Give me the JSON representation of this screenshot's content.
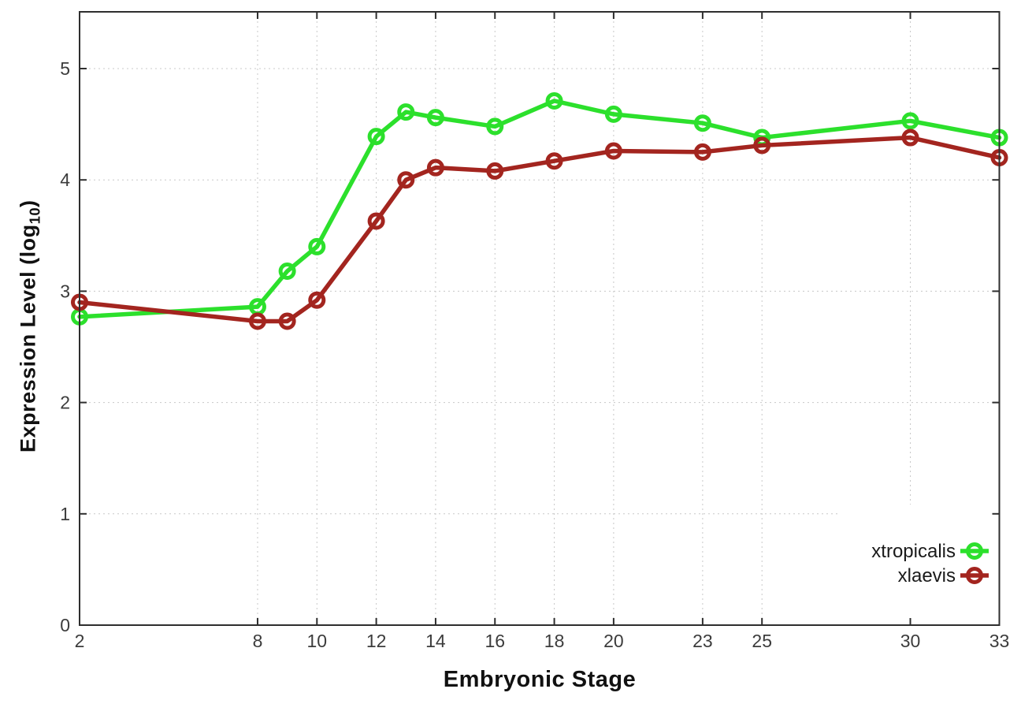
{
  "chart_data": {
    "type": "line",
    "title": "",
    "xlabel": "Embryonic Stage",
    "ylabel": "Expression Level (log10)",
    "ylabel_parts": {
      "prefix": "Expression Level (log",
      "sub": "10",
      "suffix": ")"
    },
    "x_ticks": [
      2,
      8,
      10,
      12,
      14,
      16,
      18,
      20,
      23,
      25,
      30,
      33
    ],
    "y_ticks": [
      0,
      1,
      2,
      3,
      4,
      5
    ],
    "xlim": [
      2,
      33
    ],
    "ylim": [
      0,
      5.51
    ],
    "grid": true,
    "grid_color": "#c8c8c8",
    "axis_color": "#2e2e2e",
    "tick_label_color": "#3c3c3c",
    "legend_position": "bottom-right",
    "legend": [
      {
        "label": "xtropicalis",
        "color": "#2ce02c"
      },
      {
        "label": "xlaevis",
        "color": "#a3251f"
      }
    ],
    "series": [
      {
        "name": "xtropicalis",
        "color": "#2ce02c",
        "marker": "open-circle",
        "x": [
          2,
          8,
          9,
          10,
          12,
          13,
          14,
          16,
          18,
          20,
          23,
          25,
          30,
          33
        ],
        "y": [
          2.77,
          2.86,
          3.18,
          3.4,
          4.39,
          4.61,
          4.56,
          4.48,
          4.71,
          4.59,
          4.51,
          4.38,
          4.53,
          4.38
        ]
      },
      {
        "name": "xlaevis",
        "color": "#a3251f",
        "marker": "open-circle",
        "x": [
          2,
          8,
          9,
          10,
          12,
          13,
          14,
          16,
          18,
          20,
          23,
          25,
          30,
          33
        ],
        "y": [
          2.9,
          2.73,
          2.73,
          2.92,
          3.63,
          4.0,
          4.11,
          4.08,
          4.17,
          4.26,
          4.25,
          4.31,
          4.38,
          4.2
        ]
      }
    ]
  }
}
